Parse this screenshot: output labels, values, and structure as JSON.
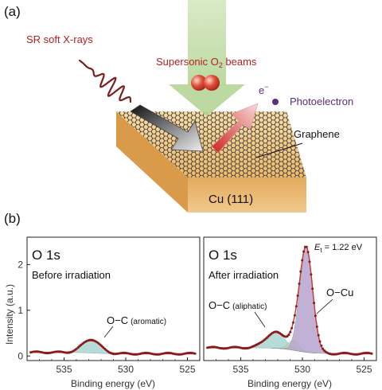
{
  "panel_a": {
    "label": "(a)",
    "sr_label": "SR soft X-rays",
    "beam_label_main": "Supersonic O",
    "beam_label_sub": "2",
    "beam_label_tail": " beams",
    "electron_symbol": "e",
    "electron_sup": "−",
    "photoelectron_label": "Photoelectron",
    "graphene_label": "Graphene",
    "substrate_label": "Cu (111)"
  },
  "panel_b": {
    "label": "(b)",
    "ylabel": "Intensity (a.u.)",
    "xlabel_left": "Binding energy (eV)",
    "xlabel_right": "Binding energy (eV)",
    "left": {
      "title": "O 1s",
      "subtitle": "Before irradiation",
      "peak_label_main": "O−C",
      "peak_label_note": "(aromatic)"
    },
    "right": {
      "title": "O 1s",
      "subtitle": "After irradiation",
      "energy_sym": "E",
      "energy_sub": "t",
      "energy_val": " = 1.22 eV",
      "peak1_main": "O−C",
      "peak1_note": "(aliphatic)",
      "peak2_label": "O−Cu"
    }
  },
  "chart_data": [
    {
      "type": "line",
      "title": "O 1s",
      "xlabel": "Binding energy (eV)",
      "ylabel": "Intensity (a.u.)",
      "xlim": [
        538,
        524
      ],
      "ylim": [
        -0.1,
        2.6
      ],
      "xticks": [
        "535",
        "530",
        "525"
      ],
      "yticks": [
        "0",
        "1",
        "2"
      ],
      "components": [
        {
          "name": "O−C (aromatic)",
          "center": 532.8,
          "height": 0.3,
          "width": 1.0,
          "color": "#a9d6d2"
        }
      ],
      "baseline": 0.08,
      "offset_min": 0.05
    },
    {
      "type": "line",
      "title": "O 1s",
      "xlabel": "Binding energy (eV)",
      "xlim": [
        538,
        524
      ],
      "ylim": [
        -0.1,
        2.6
      ],
      "xticks": [
        "535",
        "530",
        "525"
      ],
      "components": [
        {
          "name": "O−C (aliphatic)",
          "center": 532.2,
          "height": 0.35,
          "width": 1.1,
          "color": "#a9d6d2"
        },
        {
          "name": "",
          "center": 530.7,
          "height": 0.22,
          "width": 0.6,
          "color": "#c4dba5"
        },
        {
          "name": "O−Cu",
          "center": 529.7,
          "height": 2.3,
          "width": 0.75,
          "color": "#b7a3cf"
        }
      ],
      "baseline_left": 0.18,
      "baseline_right": 0.05
    }
  ],
  "colors": {
    "data_points": "#8b1a1a",
    "fit_line": "#c0392b",
    "sr_wave": "#7a1f1f",
    "beam_label": "#b22222",
    "photoelectron": "#5b2c83",
    "substrate": "#e9bb74"
  }
}
